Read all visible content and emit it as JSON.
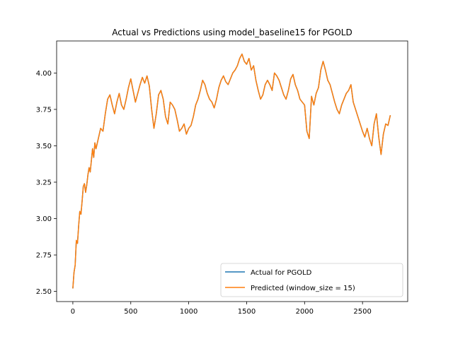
{
  "chart_data": {
    "type": "line",
    "title": "Actual vs Predictions using model_baseline15 for PGOLD",
    "xlabel": "",
    "ylabel": "",
    "xlim": [
      -140,
      2890
    ],
    "ylim": [
      2.43,
      4.22
    ],
    "x_ticks": [
      0,
      500,
      1000,
      1500,
      2000,
      2500
    ],
    "y_ticks": [
      2.5,
      2.75,
      3.0,
      3.25,
      3.5,
      3.75,
      4.0
    ],
    "x_tick_labels": [
      "0",
      "500",
      "1000",
      "1500",
      "2000",
      "2500"
    ],
    "y_tick_labels": [
      "2.50",
      "2.75",
      "3.00",
      "3.25",
      "3.50",
      "3.75",
      "4.00"
    ],
    "grid": false,
    "legend_position": "bottom-right",
    "series": [
      {
        "name": "Actual for PGOLD",
        "color": "#1f77b4",
        "x": [
          0,
          10,
          20,
          30,
          40,
          50,
          60,
          70,
          80,
          90,
          100,
          110,
          120,
          130,
          140,
          150,
          160,
          170,
          180,
          190,
          200,
          220,
          240,
          260,
          280,
          300,
          320,
          340,
          360,
          380,
          400,
          420,
          440,
          460,
          480,
          500,
          520,
          540,
          560,
          580,
          600,
          620,
          640,
          660,
          680,
          700,
          720,
          740,
          760,
          780,
          800,
          820,
          840,
          860,
          880,
          900,
          920,
          940,
          960,
          980,
          1000,
          1020,
          1040,
          1060,
          1080,
          1100,
          1120,
          1140,
          1160,
          1180,
          1200,
          1220,
          1240,
          1260,
          1280,
          1300,
          1320,
          1340,
          1360,
          1380,
          1400,
          1420,
          1440,
          1460,
          1480,
          1500,
          1520,
          1540,
          1560,
          1580,
          1600,
          1620,
          1640,
          1660,
          1680,
          1700,
          1720,
          1740,
          1760,
          1780,
          1800,
          1820,
          1840,
          1860,
          1880,
          1900,
          1920,
          1940,
          1960,
          1980,
          2000,
          2020,
          2040,
          2060,
          2080,
          2100,
          2120,
          2140,
          2160,
          2180,
          2200,
          2220,
          2240,
          2260,
          2280,
          2300,
          2320,
          2340,
          2360,
          2380,
          2400,
          2420,
          2440,
          2460,
          2480,
          2500,
          2520,
          2540,
          2560,
          2580,
          2600,
          2620,
          2640,
          2660,
          2680,
          2700,
          2720,
          2740
        ],
        "values": [
          2.52,
          2.63,
          2.68,
          2.85,
          2.83,
          2.95,
          3.05,
          3.03,
          3.12,
          3.22,
          3.24,
          3.18,
          3.23,
          3.3,
          3.35,
          3.32,
          3.4,
          3.48,
          3.42,
          3.52,
          3.48,
          3.55,
          3.62,
          3.6,
          3.72,
          3.82,
          3.85,
          3.78,
          3.72,
          3.8,
          3.86,
          3.78,
          3.75,
          3.82,
          3.9,
          3.96,
          3.88,
          3.8,
          3.86,
          3.92,
          3.97,
          3.93,
          3.98,
          3.91,
          3.75,
          3.62,
          3.72,
          3.85,
          3.88,
          3.82,
          3.7,
          3.65,
          3.8,
          3.78,
          3.75,
          3.68,
          3.6,
          3.62,
          3.65,
          3.58,
          3.62,
          3.64,
          3.7,
          3.78,
          3.82,
          3.88,
          3.95,
          3.92,
          3.86,
          3.82,
          3.8,
          3.76,
          3.82,
          3.9,
          3.95,
          3.98,
          3.94,
          3.92,
          3.96,
          4.0,
          4.02,
          4.05,
          4.1,
          4.13,
          4.08,
          4.06,
          4.1,
          4.02,
          4.05,
          3.95,
          3.88,
          3.82,
          3.85,
          3.92,
          3.95,
          3.92,
          3.88,
          4.0,
          3.98,
          3.95,
          3.9,
          3.85,
          3.82,
          3.88,
          3.96,
          3.99,
          3.92,
          3.88,
          3.82,
          3.8,
          3.78,
          3.6,
          3.55,
          3.84,
          3.78,
          3.86,
          3.9,
          4.02,
          4.08,
          4.02,
          3.95,
          3.92,
          3.86,
          3.8,
          3.75,
          3.72,
          3.78,
          3.82,
          3.86,
          3.88,
          3.92,
          3.8,
          3.75,
          3.7,
          3.65,
          3.6,
          3.56,
          3.62,
          3.55,
          3.5,
          3.65,
          3.72,
          3.56,
          3.44,
          3.58,
          3.65,
          3.64,
          3.71
        ]
      },
      {
        "name": "Predicted (window_size = 15)",
        "color": "#ff7f0e",
        "x": [
          0,
          10,
          20,
          30,
          40,
          50,
          60,
          70,
          80,
          90,
          100,
          110,
          120,
          130,
          140,
          150,
          160,
          170,
          180,
          190,
          200,
          220,
          240,
          260,
          280,
          300,
          320,
          340,
          360,
          380,
          400,
          420,
          440,
          460,
          480,
          500,
          520,
          540,
          560,
          580,
          600,
          620,
          640,
          660,
          680,
          700,
          720,
          740,
          760,
          780,
          800,
          820,
          840,
          860,
          880,
          900,
          920,
          940,
          960,
          980,
          1000,
          1020,
          1040,
          1060,
          1080,
          1100,
          1120,
          1140,
          1160,
          1180,
          1200,
          1220,
          1240,
          1260,
          1280,
          1300,
          1320,
          1340,
          1360,
          1380,
          1400,
          1420,
          1440,
          1460,
          1480,
          1500,
          1520,
          1540,
          1560,
          1580,
          1600,
          1620,
          1640,
          1660,
          1680,
          1700,
          1720,
          1740,
          1760,
          1780,
          1800,
          1820,
          1840,
          1860,
          1880,
          1900,
          1920,
          1940,
          1960,
          1980,
          2000,
          2020,
          2040,
          2060,
          2080,
          2100,
          2120,
          2140,
          2160,
          2180,
          2200,
          2220,
          2240,
          2260,
          2280,
          2300,
          2320,
          2340,
          2360,
          2380,
          2400,
          2420,
          2440,
          2460,
          2480,
          2500,
          2520,
          2540,
          2560,
          2580,
          2600,
          2620,
          2640,
          2660,
          2680,
          2700,
          2720,
          2740
        ],
        "values": [
          2.52,
          2.63,
          2.68,
          2.85,
          2.83,
          2.95,
          3.05,
          3.03,
          3.12,
          3.22,
          3.24,
          3.18,
          3.23,
          3.3,
          3.35,
          3.32,
          3.4,
          3.48,
          3.42,
          3.52,
          3.48,
          3.55,
          3.62,
          3.6,
          3.72,
          3.82,
          3.85,
          3.78,
          3.72,
          3.8,
          3.86,
          3.78,
          3.75,
          3.82,
          3.9,
          3.96,
          3.88,
          3.8,
          3.86,
          3.92,
          3.97,
          3.93,
          3.98,
          3.91,
          3.75,
          3.62,
          3.72,
          3.85,
          3.88,
          3.82,
          3.7,
          3.65,
          3.8,
          3.78,
          3.75,
          3.68,
          3.6,
          3.62,
          3.65,
          3.58,
          3.62,
          3.64,
          3.7,
          3.78,
          3.82,
          3.88,
          3.95,
          3.92,
          3.86,
          3.82,
          3.8,
          3.76,
          3.82,
          3.9,
          3.95,
          3.98,
          3.94,
          3.92,
          3.96,
          4.0,
          4.02,
          4.05,
          4.1,
          4.13,
          4.08,
          4.06,
          4.1,
          4.02,
          4.05,
          3.95,
          3.88,
          3.82,
          3.85,
          3.92,
          3.95,
          3.92,
          3.88,
          4.0,
          3.98,
          3.95,
          3.9,
          3.85,
          3.82,
          3.88,
          3.96,
          3.99,
          3.92,
          3.88,
          3.82,
          3.8,
          3.78,
          3.6,
          3.55,
          3.84,
          3.78,
          3.86,
          3.9,
          4.02,
          4.08,
          4.02,
          3.95,
          3.92,
          3.86,
          3.8,
          3.75,
          3.72,
          3.78,
          3.82,
          3.86,
          3.88,
          3.92,
          3.8,
          3.75,
          3.7,
          3.65,
          3.6,
          3.56,
          3.62,
          3.55,
          3.5,
          3.65,
          3.72,
          3.56,
          3.44,
          3.58,
          3.65,
          3.64,
          3.71
        ]
      }
    ]
  }
}
